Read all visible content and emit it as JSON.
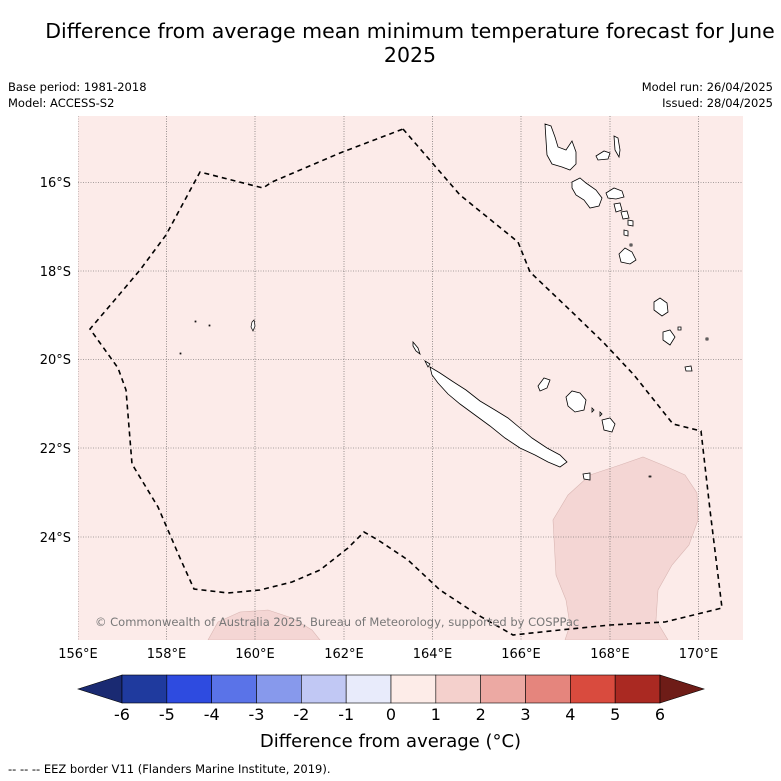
{
  "title": "Difference from average mean minimum temperature forecast for June 2025",
  "base_period": "Base period: 1981-2018",
  "model": "Model: ACCESS-S2",
  "model_run": "Model run: 26/04/2025",
  "issued": "Issued: 28/04/2025",
  "copyright": "© Commonwealth of Australia 2025, Bureau of Meteorology, supported by COSPPac",
  "footnote": "--  --  -- EEZ border V11 (Flanders Marine Institute, 2019).",
  "colors": {
    "map_background": "#fcebe9",
    "anomaly_1_2": "#f4d6d4",
    "eez_border": "#000000",
    "gridline": "#555555"
  },
  "map": {
    "lon_range": [
      156,
      171
    ],
    "lat_range": [
      -26.5,
      -14.5
    ],
    "lon_ticks": [
      "156°E",
      "158°E",
      "160°E",
      "162°E",
      "164°E",
      "166°E",
      "168°E",
      "170°E"
    ],
    "lat_ticks": [
      "16°S",
      "18°S",
      "20°S",
      "22°S",
      "24°S"
    ],
    "gridlines": true,
    "regions": [
      "New Caledonia",
      "Vanuatu"
    ]
  },
  "colorbar": {
    "label": "Difference from average (°C)",
    "ticks": [
      "-6",
      "-5",
      "-4",
      "-3",
      "-2",
      "-1",
      "0",
      "1",
      "2",
      "3",
      "4",
      "5",
      "6"
    ],
    "colors": [
      "#1f3a9e",
      "#2e4be0",
      "#5a73e8",
      "#8799ec",
      "#c1c8f4",
      "#e8ebfb",
      "#fdece8",
      "#f4d0cc",
      "#eca9a3",
      "#e5857d",
      "#d94b3e",
      "#aa2922"
    ],
    "extend_low": "#1a2a72",
    "extend_high": "#6e1c17"
  }
}
